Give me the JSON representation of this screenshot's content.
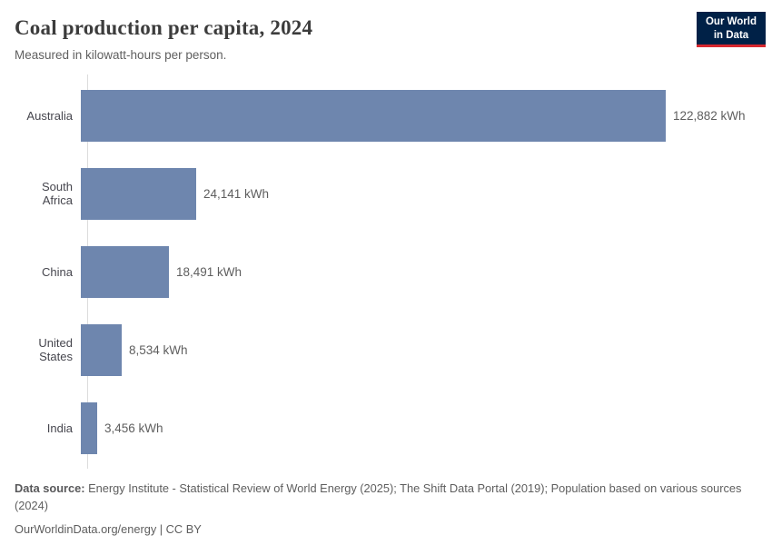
{
  "header": {
    "title": "Coal production per capita, 2024",
    "subtitle": "Measured in kilowatt-hours per person.",
    "logo_line1": "Our World",
    "logo_line2": "in Data",
    "logo_bg": "#002147",
    "logo_accent": "#d7282f"
  },
  "chart_data": {
    "type": "bar",
    "orientation": "horizontal",
    "title": "Coal production per capita, 2024",
    "subtitle": "Measured in kilowatt-hours per person.",
    "unit": "kWh",
    "categories": [
      "Australia",
      "South Africa",
      "China",
      "United States",
      "India"
    ],
    "values": [
      122882,
      24141,
      18491,
      8534,
      3456
    ],
    "value_labels": [
      "122,882 kWh",
      "24,141 kWh",
      "18,491 kWh",
      "8,534 kWh",
      "3,456 kWh"
    ],
    "xlim": [
      0,
      122882
    ],
    "bar_color": "#6e86ae",
    "axis_color": "#dcdcdc",
    "grid": false,
    "legend": false
  },
  "footer": {
    "source_label": "Data source:",
    "source_text": " Energy Institute - Statistical Review of World Energy (2025); The Shift Data Portal (2019); Population based on various sources (2024)",
    "link_text": "OurWorldinData.org/energy",
    "license_text": " | CC BY"
  }
}
